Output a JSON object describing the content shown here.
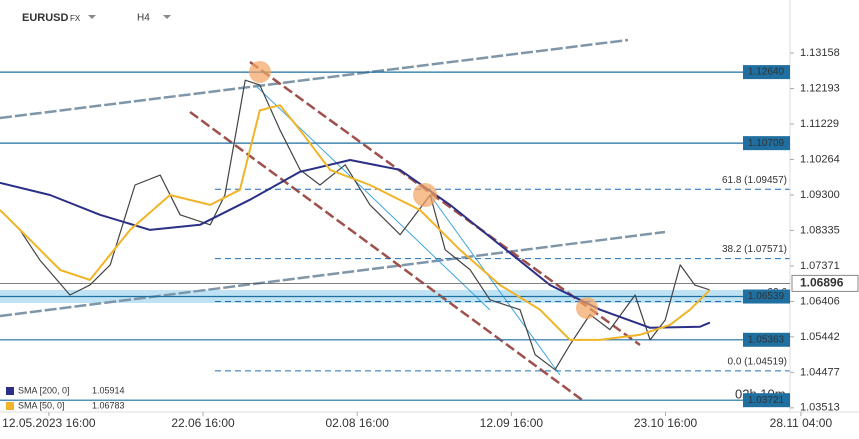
{
  "chart_data": {
    "type": "line",
    "title": "EURUSD",
    "market": "FX",
    "timeframe": "H4",
    "timer": "02h 10m",
    "xlim": [
      -13,
      197.1
    ],
    "ylim": [
      1.034,
      1.146
    ],
    "grid": false,
    "xticks": [
      {
        "value": 0,
        "label": "12.05.2023 16:00"
      },
      {
        "value": 41,
        "label": "22.06 16:00"
      },
      {
        "value": 82,
        "label": "02.08 16:00"
      },
      {
        "value": 123,
        "label": "12.09 16:00"
      },
      {
        "value": 164,
        "label": "23.10 16:00"
      },
      {
        "value": 200,
        "label": "28.11 04:00"
      }
    ],
    "yticks": [
      1.13158,
      1.12193,
      1.11229,
      1.10264,
      {
        "value": 1.093,
        "label": "1.09300"
      },
      1.08335,
      1.07371,
      1.06406,
      1.05442,
      1.04477,
      1.03513
    ],
    "price": {
      "color": "#444444",
      "x": [
        -13,
        -7.7,
        -2.4,
        5.6,
        10.9,
        16.3,
        22.9,
        29.6,
        34.9,
        42.9,
        46.8,
        50.8,
        52.2,
        56.1,
        61.5,
        66.8,
        72.1,
        78.8,
        85.4,
        93.4,
        101.4,
        105.4,
        112,
        117.3,
        125.3,
        129.3,
        134.6,
        138.6,
        143.9,
        149.2,
        155.9,
        159.9,
        163.9,
        167.9,
        171.8,
        175.8
      ],
      "values": [
        1.0889,
        1.0835,
        1.0753,
        1.0658,
        1.0685,
        1.074,
        1.0957,
        1.0984,
        1.0876,
        1.0849,
        1.093,
        1.116,
        1.1242,
        1.1229,
        1.1106,
        1.0998,
        1.0957,
        1.1012,
        1.0903,
        1.0822,
        1.093,
        1.0781,
        1.0727,
        1.0645,
        1.0618,
        1.0496,
        1.0455,
        1.0523,
        1.0605,
        1.0564,
        1.0658,
        1.0536,
        1.059,
        1.074,
        1.0685,
        1.0672
      ]
    },
    "series": [
      {
        "name": "SMA [200, 0]",
        "last": 1.05914,
        "color": "#2b2f86",
        "x": [
          -13,
          0.3,
          13.6,
          26.9,
          40.2,
          53.5,
          66.8,
          80.1,
          93.4,
          106.7,
          120,
          133.3,
          146.6,
          159.9,
          173.2,
          175.8
        ],
        "values": [
          1.0963,
          1.093,
          1.0876,
          1.0835,
          1.0849,
          1.0917,
          1.0993,
          1.1025,
          1.0998,
          1.0903,
          1.0794,
          1.0685,
          1.0618,
          1.0569,
          1.0572,
          1.0583
        ]
      },
      {
        "name": "SMA [50, 0]",
        "last": 1.06783,
        "color": "#f0b429",
        "x": [
          -13,
          -5,
          3,
          10.9,
          21.6,
          32.2,
          42.9,
          50.8,
          56.1,
          61.5,
          66.8,
          74.8,
          85.4,
          98.7,
          109.3,
          120,
          130.6,
          138.6,
          146.6,
          157.2,
          165.2,
          170.5,
          175.8
        ],
        "values": [
          1.0889,
          1.0808,
          1.0726,
          1.0699,
          1.0835,
          1.093,
          1.0903,
          1.0944,
          1.116,
          1.1174,
          1.1106,
          1.0998,
          1.0957,
          1.0889,
          1.0781,
          1.0685,
          1.0618,
          1.0536,
          1.0536,
          1.055,
          1.0577,
          1.0618,
          1.0672
        ]
      }
    ],
    "levels": [
      {
        "label": "1.12640",
        "value": 1.1264
      },
      {
        "label": "1.10709",
        "value": 1.10709
      },
      {
        "label": "1.06539",
        "value": 1.06539
      },
      {
        "label": "1.05363",
        "value": 1.05363
      },
      {
        "label": "1.03721",
        "value": 1.03721
      }
    ],
    "fibs": [
      {
        "label": "61.8 (1.09457)",
        "value": 1.09457
      },
      {
        "label": "38.2 (1.07571)",
        "value": 1.07571
      },
      {
        "label": "23.6",
        "value": 1.06405
      },
      {
        "label": "0.0 (1.04519)",
        "value": 1.04519
      }
    ],
    "current": {
      "label": "1.06896",
      "value": 1.06896
    }
  }
}
